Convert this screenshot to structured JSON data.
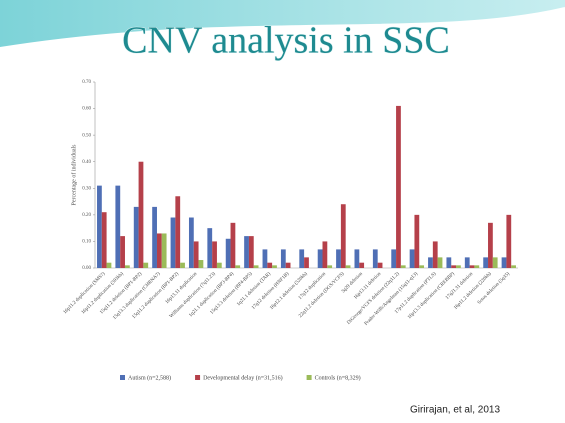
{
  "slide": {
    "title": "CNV analysis in SSC",
    "citation": "Girirajan, et al, 2013"
  },
  "chart_data": {
    "type": "bar",
    "y_label": "Percentage of individuals",
    "categories": [
      "16p11.2 duplication (SMS?)",
      "16p11.2 duplication (593kb)",
      "15q11.2 deletion (BP1-BP2)",
      "15q13.3 duplication (CHRNA7)",
      "15q11.2 duplication (BP1-BP2)",
      "16p13.11 duplication",
      "Williams duplication (7q11.23)",
      "1q21.1 duplication (BP3-BP4)",
      "15q13.3 deletion (BP4-BP5)",
      "1q21.1 deletion (TAR)",
      "17q12 deletion (HNF1B)",
      "16p12.1 deletion (520kb)",
      "17q12 duplication",
      "22q11.2 deletion (DGS/VCFS)",
      "3q29 deletion",
      "16p13.11 deletion",
      "DiGeorge/VCFS deletion (22q11.2)",
      "Prader-Willi/Angelman (15q11-q13)",
      "17p11.2 duplication (PTLS)",
      "16p13.3 duplication (CREBBP)",
      "17q21.31 deletion",
      "16p11.2 deletion (220kb)",
      "Sotos deletion (5q35)"
    ],
    "series": [
      {
        "name": "Autism (n=2,588)",
        "color": "#4f6fb5",
        "values": [
          0.31,
          0.31,
          0.23,
          0.23,
          0.19,
          0.19,
          0.15,
          0.11,
          0.12,
          0.07,
          0.07,
          0.07,
          0.07,
          0.07,
          0.07,
          0.07,
          0.07,
          0.07,
          0.04,
          0.04,
          0.04,
          0.04,
          0.04
        ]
      },
      {
        "name": "Developmental delay (n=31,516)",
        "color": "#b5404a",
        "values": [
          0.21,
          0.12,
          0.4,
          0.13,
          0.27,
          0.1,
          0.1,
          0.17,
          0.12,
          0.02,
          0.02,
          0.04,
          0.1,
          0.24,
          0.02,
          0.02,
          0.61,
          0.2,
          0.1,
          0.01,
          0.01,
          0.17,
          0.2
        ]
      },
      {
        "name": "Controls (n=8,329)",
        "color": "#9bbb59",
        "values": [
          0.02,
          0.01,
          0.02,
          0.13,
          0.02,
          0.03,
          0.02,
          0.01,
          0.01,
          0.01,
          0.0,
          0.0,
          0.01,
          0.01,
          0.0,
          0.0,
          0.01,
          0.01,
          0.04,
          0.01,
          0.01,
          0.04,
          0.01
        ]
      }
    ],
    "ylim": [
      0,
      0.7
    ],
    "yticks": [
      {
        "value": 0,
        "label": "0.00"
      },
      {
        "value": 0.1,
        "label": "0.10"
      },
      {
        "value": 0.2,
        "label": "0.20"
      },
      {
        "value": 0.3,
        "label": "0.30"
      },
      {
        "value": 0.4,
        "label": "0.40"
      },
      {
        "value": 0.5,
        "label": "0.50"
      },
      {
        "value": 0.6,
        "label": "0.60"
      },
      {
        "value": 0.7,
        "label": "0.70"
      }
    ],
    "grid": false
  }
}
